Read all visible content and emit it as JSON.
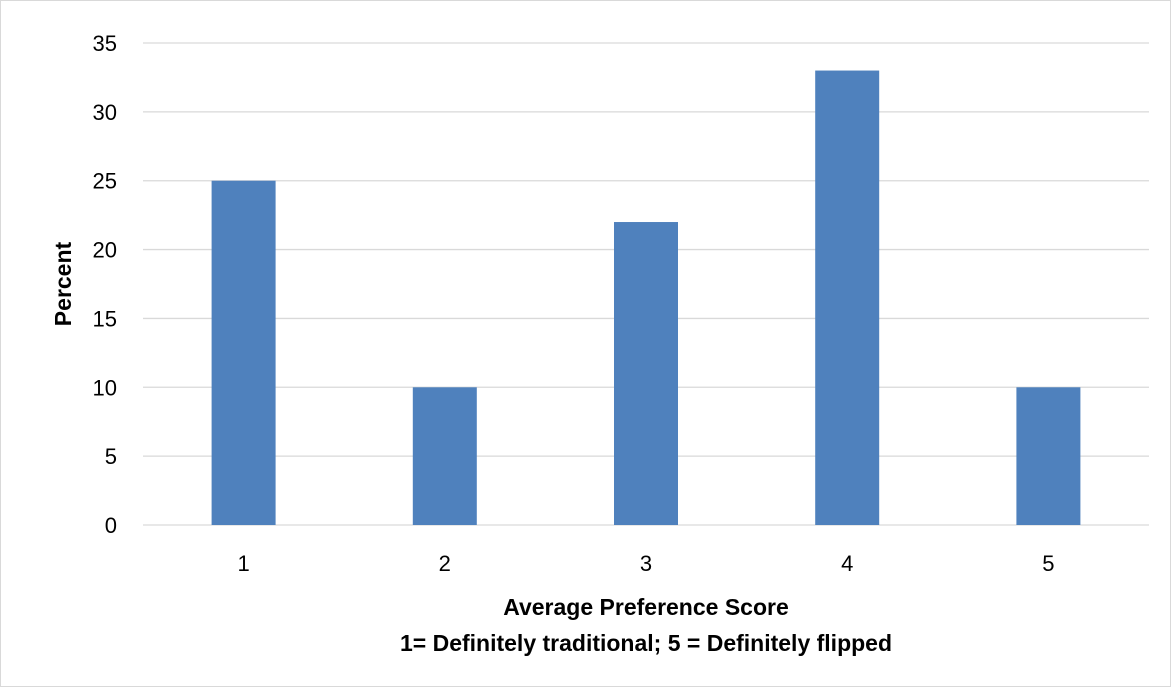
{
  "chart_data": {
    "type": "bar",
    "categories": [
      "1",
      "2",
      "3",
      "4",
      "5"
    ],
    "values": [
      25,
      10,
      22,
      33,
      10
    ],
    "title": "",
    "xlabel": "Average Preference Score",
    "xlabel_line2": "1= Definitely traditional; 5 = Definitely flipped",
    "ylabel": "Percent",
    "ylim": [
      0,
      35
    ],
    "yticks": [
      "0",
      "5",
      "10",
      "15",
      "20",
      "25",
      "30",
      "35"
    ],
    "grid": true,
    "legend": "none",
    "bar_color": "#4F81BD",
    "grid_color": "#D9D9D9"
  }
}
